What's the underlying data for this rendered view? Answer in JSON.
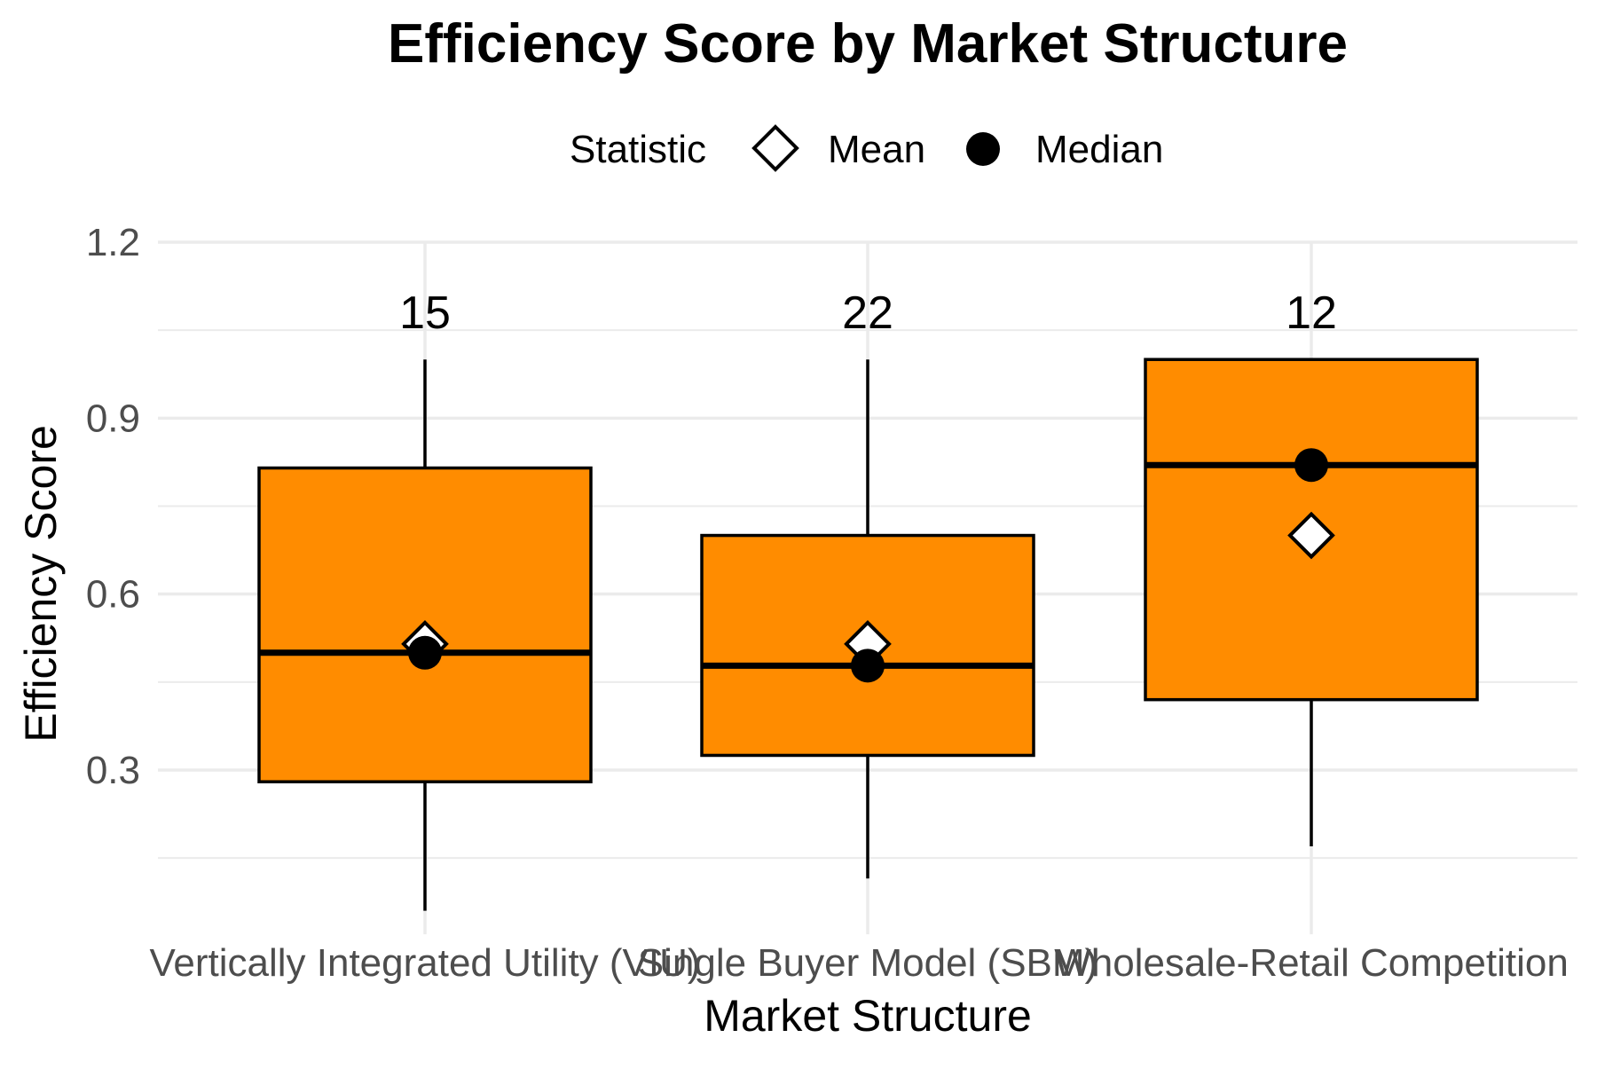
{
  "chart_data": {
    "type": "box",
    "title": "Efficiency Score by Market Structure",
    "xlabel": "Market Structure",
    "ylabel": "Efficiency Score",
    "ylim": [
      0.02,
      1.2
    ],
    "yticks": [
      0.3,
      0.6,
      0.9,
      1.2
    ],
    "ytick_labels": [
      "0.3",
      "0.6",
      "0.9",
      "1.2"
    ],
    "grid": true,
    "legend": {
      "title": "Statistic",
      "position": "top",
      "items": [
        {
          "label": "Mean",
          "marker": "diamond-open"
        },
        {
          "label": "Median",
          "marker": "circle-filled"
        }
      ]
    },
    "box_color": "#FF8C00",
    "categories": [
      "Vertically Integrated Utility (VIU)",
      "Single Buyer Model (SBM)",
      "Wholesale-Retail Competition"
    ],
    "counts": [
      "15",
      "22",
      "12"
    ],
    "boxes": [
      {
        "whisker_low": 0.06,
        "q1": 0.28,
        "median": 0.5,
        "q3": 0.815,
        "whisker_high": 1.0,
        "mean": 0.515
      },
      {
        "whisker_low": 0.115,
        "q1": 0.325,
        "median": 0.478,
        "q3": 0.7,
        "whisker_high": 1.0,
        "mean": 0.515
      },
      {
        "whisker_low": 0.17,
        "q1": 0.42,
        "median": 0.82,
        "q3": 1.0,
        "whisker_high": 1.0,
        "mean": 0.7
      }
    ]
  }
}
